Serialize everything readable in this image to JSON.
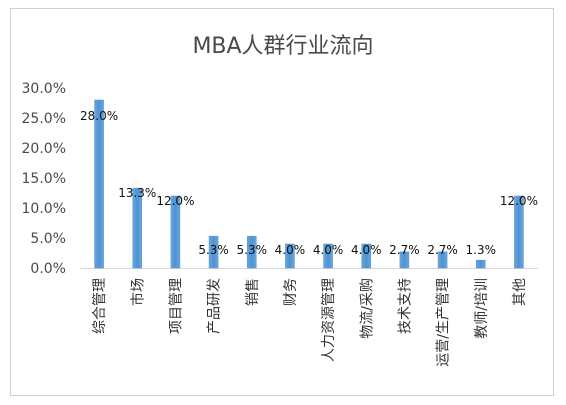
{
  "chart_data": {
    "type": "bar",
    "title": "MBA人群行业流向",
    "xlabel": "",
    "ylabel": "",
    "ylim": [
      0,
      0.3
    ],
    "y_ticks": [
      "0.0%",
      "5.0%",
      "10.0%",
      "15.0%",
      "20.0%",
      "25.0%",
      "30.0%"
    ],
    "grid": false,
    "legend": "none",
    "bar_color": "#5b9bd5",
    "categories": [
      "综合管理",
      "市场",
      "项目管理",
      "产品研发",
      "销售",
      "财务",
      "人力资源管理",
      "物流/采购",
      "技术支持",
      "运营/生产管理",
      "教师/培训",
      "其他"
    ],
    "values": [
      0.28,
      0.133,
      0.12,
      0.053,
      0.053,
      0.04,
      0.04,
      0.04,
      0.027,
      0.027,
      0.013,
      0.12
    ],
    "data_labels": [
      "28.0%",
      "13.3%",
      "12.0%",
      "5.3%",
      "5.3%",
      "4.0%",
      "4.0%",
      "4.0%",
      "2.7%",
      "2.7%",
      "1.3%",
      "12.0%"
    ]
  }
}
